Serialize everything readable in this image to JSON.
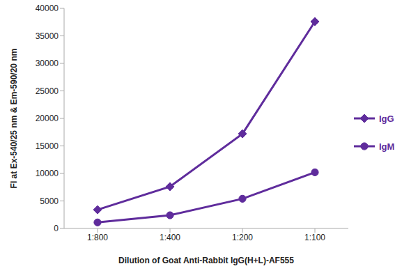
{
  "chart_data": {
    "type": "line",
    "categories": [
      "1:800",
      "1:400",
      "1:200",
      "1:100"
    ],
    "series": [
      {
        "name": "IgG",
        "color": "#5f2c9c",
        "marker": "diamond",
        "values": [
          3400,
          7600,
          17200,
          37600
        ]
      },
      {
        "name": "IgM",
        "color": "#5f2c9c",
        "marker": "circle",
        "values": [
          1100,
          2400,
          5400,
          10200
        ]
      }
    ],
    "xlabel": "Dilution of Goat Anti-Rabbit IgG(H+L)-AF555",
    "ylabel": "FI at Ex-540/25 nm & Em-590/20 nm",
    "ylim": [
      0,
      40000
    ],
    "yticks": [
      0,
      5000,
      10000,
      15000,
      20000,
      25000,
      30000,
      35000,
      40000
    ],
    "grid": false,
    "legend": "right"
  }
}
